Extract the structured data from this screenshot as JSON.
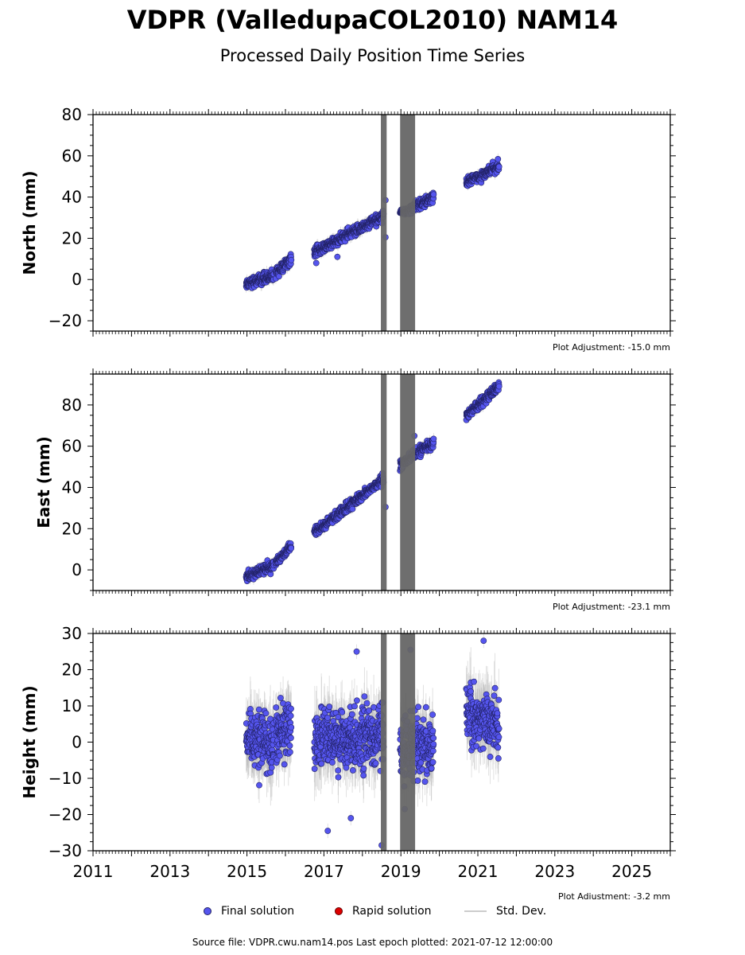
{
  "title": "VDPR (ValledupaCOL2010) NAM14",
  "subtitle": "Processed Daily Position Time Series",
  "legend": {
    "final": "Final solution",
    "rapid": "Rapid solution",
    "std": "Std. Dev."
  },
  "footer": "Source file: VDPR.cwu.nam14.pos  Last epoch plotted: 2021-07-12 12:00:00",
  "colors": {
    "final": "#5555ee",
    "final_edge": "#222266",
    "rapid": "#dd0000",
    "std": "#bbbbbb",
    "gap": "#666666"
  },
  "chart_data": [
    {
      "type": "scatter",
      "ylabel": "North (mm)",
      "ylim": [
        -25,
        80
      ],
      "yticks": [
        -20,
        0,
        20,
        40,
        60,
        80
      ],
      "adjustment": "Plot Adjustment: -15.0 mm",
      "xlim": [
        2011,
        2026
      ],
      "gaps": [
        [
          2018.48,
          2018.63
        ],
        [
          2018.98,
          2019.37
        ]
      ],
      "segments": [
        {
          "x": [
            2014.98,
            2015.7
          ],
          "y": [
            -2,
            2
          ],
          "noise": 2.2
        },
        {
          "x": [
            2015.75,
            2016.15
          ],
          "y": [
            3,
            10
          ],
          "noise": 2.2
        },
        {
          "x": [
            2016.75,
            2018.55
          ],
          "y": [
            13,
            31
          ],
          "noise": 2.2
        },
        {
          "x": [
            2018.98,
            2019.85
          ],
          "y": [
            32,
            40
          ],
          "noise": 2.0
        },
        {
          "x": [
            2020.7,
            2021.55
          ],
          "y": [
            47,
            55
          ],
          "noise": 2.0
        }
      ],
      "outliers": [
        [
          2018.6,
          20.5
        ],
        [
          2016.8,
          8
        ],
        [
          2017.35,
          11
        ],
        [
          2018.6,
          38.5
        ]
      ]
    },
    {
      "type": "scatter",
      "ylabel": "East (mm)",
      "ylim": [
        -10,
        95
      ],
      "yticks": [
        0,
        20,
        40,
        60,
        80
      ],
      "adjustment": "Plot Adjustment: -23.1 mm",
      "xlim": [
        2011,
        2026
      ],
      "gaps": [
        [
          2018.48,
          2018.63
        ],
        [
          2018.98,
          2019.37
        ]
      ],
      "segments": [
        {
          "x": [
            2014.98,
            2015.7
          ],
          "y": [
            -3,
            2
          ],
          "noise": 2.0
        },
        {
          "x": [
            2015.75,
            2016.15
          ],
          "y": [
            4,
            11
          ],
          "noise": 2.0
        },
        {
          "x": [
            2016.75,
            2018.55
          ],
          "y": [
            18,
            44
          ],
          "noise": 2.0
        },
        {
          "x": [
            2018.98,
            2019.85
          ],
          "y": [
            51,
            62
          ],
          "noise": 2.0
        },
        {
          "x": [
            2020.7,
            2021.55
          ],
          "y": [
            75,
            89
          ],
          "noise": 2.0
        }
      ],
      "outliers": [
        [
          2018.6,
          30.5
        ],
        [
          2019.35,
          65
        ]
      ]
    },
    {
      "type": "scatter",
      "ylabel": "Height (mm)",
      "ylim": [
        -30,
        30
      ],
      "yticks": [
        -30,
        -20,
        -10,
        0,
        10,
        20,
        30
      ],
      "xticks": [
        2011,
        2013,
        2015,
        2017,
        2019,
        2021,
        2023,
        2025
      ],
      "adjustment": "Plot Adjustment: -3.2 mm",
      "xlim": [
        2011,
        2026
      ],
      "gaps": [
        [
          2018.48,
          2018.63
        ],
        [
          2018.98,
          2019.37
        ]
      ],
      "segments": [
        {
          "x": [
            2014.98,
            2015.7
          ],
          "y": [
            0,
            0
          ],
          "noise": 7.0
        },
        {
          "x": [
            2015.75,
            2016.15
          ],
          "y": [
            3,
            3
          ],
          "noise": 7.0
        },
        {
          "x": [
            2016.75,
            2018.55
          ],
          "y": [
            1,
            1
          ],
          "noise": 7.0
        },
        {
          "x": [
            2018.98,
            2019.85
          ],
          "y": [
            -1,
            -1
          ],
          "noise": 7.0
        },
        {
          "x": [
            2020.7,
            2021.55
          ],
          "y": [
            8,
            5
          ],
          "noise": 7.0
        }
      ],
      "outliers": [
        [
          2018.5,
          -28.5
        ],
        [
          2017.1,
          -24.5
        ],
        [
          2017.7,
          -21
        ],
        [
          2019.1,
          -18.5
        ],
        [
          2019.25,
          25.5
        ],
        [
          2017.85,
          25
        ],
        [
          2021.15,
          28
        ]
      ]
    }
  ]
}
